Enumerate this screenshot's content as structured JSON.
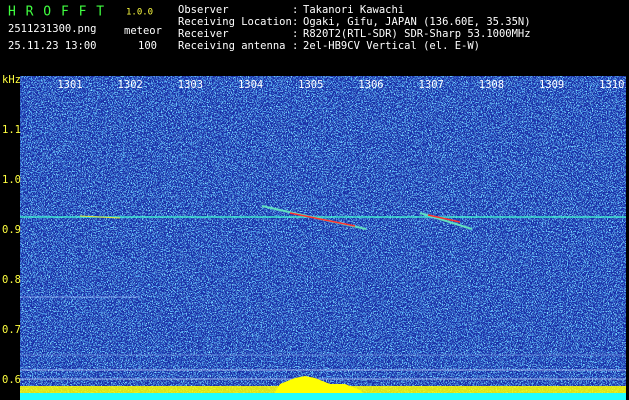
{
  "header": {
    "app": "H R O F F T",
    "version": "1.0.0",
    "file": "2511231300.png",
    "mode": "meteor",
    "datetime": "25.11.23 13:00",
    "count": "100"
  },
  "separator": ":",
  "info": [
    {
      "label": "Observer",
      "value": "Takanori Kawachi"
    },
    {
      "label": "Receiving Location",
      "value": "Ogaki, Gifu, JAPAN (136.60E, 35.35N)"
    },
    {
      "label": "Receiver",
      "value": "R820T2(RTL-SDR) SDR-Sharp 53.1000MHz"
    },
    {
      "label": "Receiving antenna",
      "value": "2el-HB9CV Vertical (el. E-W)"
    }
  ],
  "axis": {
    "unit": "kHz",
    "x_ticks": [
      "1301",
      "1302",
      "1303",
      "1304",
      "1305",
      "1306",
      "1307",
      "1308",
      "1309",
      "1310"
    ],
    "y_ticks": [
      "1.1",
      "1.0",
      "0.9",
      "0.8",
      "0.7",
      "0.6"
    ]
  }
}
